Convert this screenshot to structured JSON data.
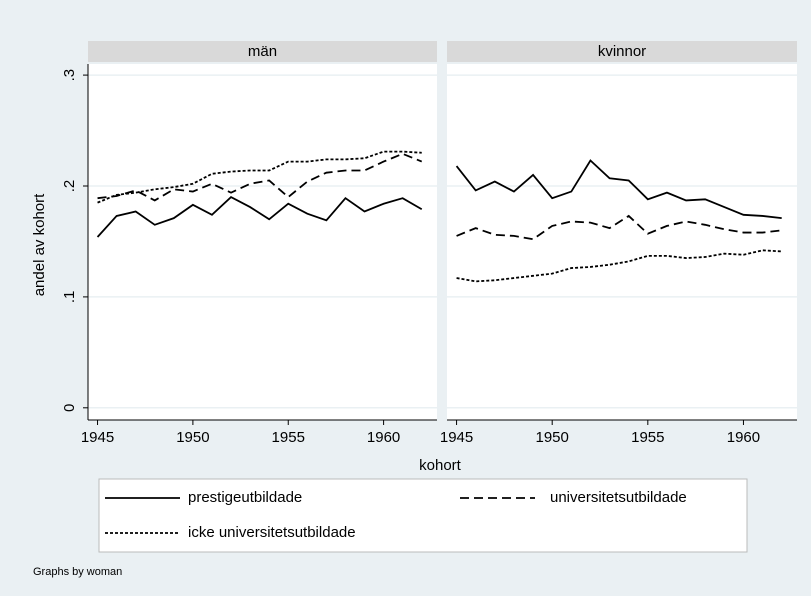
{
  "chart_data": {
    "type": "line",
    "xlabel": "kohort",
    "ylabel": "andel av kohort",
    "note": "Graphs by woman",
    "x": [
      1945,
      1946,
      1947,
      1948,
      1949,
      1950,
      1951,
      1952,
      1953,
      1954,
      1955,
      1956,
      1957,
      1958,
      1959,
      1960,
      1961,
      1962
    ],
    "xlim": [
      1944.5,
      1962.8
    ],
    "xticks": [
      1945,
      1950,
      1955,
      1960
    ],
    "ylim": [
      -0.011,
      0.31
    ],
    "yticks": [
      0,
      {
        "value": 0.1,
        "label": ".1"
      },
      {
        "value": 0.2,
        "label": ".2"
      },
      {
        "value": 0.3,
        "label": ".3"
      }
    ],
    "grid": true,
    "legend": "bottom",
    "series": [
      {
        "name": "prestigeutbildade",
        "color": "#000000",
        "dash": "solid"
      },
      {
        "name": "universitetsutbildade",
        "color": "#000000",
        "dash": "dashed"
      },
      {
        "name": "icke universitetsutbildade",
        "color": "#000000",
        "dash": "dotted"
      }
    ],
    "panels": [
      {
        "title": "män",
        "values": [
          [
            0.154,
            0.173,
            0.177,
            0.165,
            0.171,
            0.183,
            0.174,
            0.19,
            0.181,
            0.17,
            0.184,
            0.175,
            0.169,
            0.189,
            0.177,
            0.184,
            0.189,
            0.179
          ],
          [
            0.189,
            0.191,
            0.196,
            0.187,
            0.197,
            0.195,
            0.202,
            0.194,
            0.202,
            0.205,
            0.19,
            0.204,
            0.212,
            0.214,
            0.214,
            0.222,
            0.229,
            0.222
          ],
          [
            0.185,
            0.192,
            0.194,
            0.197,
            0.199,
            0.202,
            0.211,
            0.213,
            0.214,
            0.214,
            0.222,
            0.222,
            0.224,
            0.224,
            0.225,
            0.231,
            0.231,
            0.23
          ]
        ]
      },
      {
        "title": "kvinnor",
        "values": [
          [
            0.218,
            0.196,
            0.204,
            0.195,
            0.21,
            0.189,
            0.195,
            0.223,
            0.207,
            0.205,
            0.188,
            0.194,
            0.187,
            0.188,
            0.181,
            0.174,
            0.173,
            0.171
          ],
          [
            0.155,
            0.162,
            0.156,
            0.155,
            0.152,
            0.164,
            0.168,
            0.167,
            0.162,
            0.173,
            0.157,
            0.164,
            0.168,
            0.165,
            0.161,
            0.158,
            0.158,
            0.16
          ],
          [
            0.117,
            0.114,
            0.115,
            0.117,
            0.119,
            0.121,
            0.126,
            0.127,
            0.129,
            0.132,
            0.137,
            0.137,
            0.135,
            0.136,
            0.139,
            0.138,
            0.142,
            0.141
          ]
        ]
      }
    ]
  }
}
